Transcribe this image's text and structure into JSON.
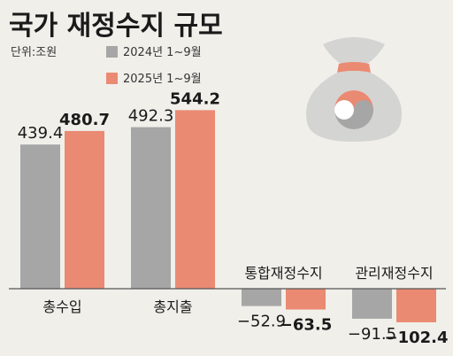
{
  "title": "국가 재정수지 규모",
  "unit_label": "단위:조원",
  "colors": {
    "y2024": "#a6a6a6",
    "y2025": "#ea8a73",
    "bag": "#d4d4d2"
  },
  "bag_icon": "money-bag-icon",
  "chart_data": {
    "type": "bar",
    "title": "국가 재정수지 규모",
    "unit": "단위:조원",
    "categories": [
      "총수입",
      "총지출",
      "통합재정수지",
      "관리재정수지"
    ],
    "series": [
      {
        "name": "2024년 1~9월",
        "values": [
          439.4,
          492.3,
          -52.9,
          -91.5
        ],
        "labels": [
          "439.4",
          "492.3",
          "−52.9",
          "−91.5"
        ]
      },
      {
        "name": "2025년 1~9월",
        "values": [
          480.7,
          544.2,
          -63.5,
          -102.4
        ],
        "labels": [
          "480.7",
          "544.2",
          "−63.5",
          "−102.4"
        ]
      }
    ],
    "legend": "top-left",
    "grid": false
  }
}
